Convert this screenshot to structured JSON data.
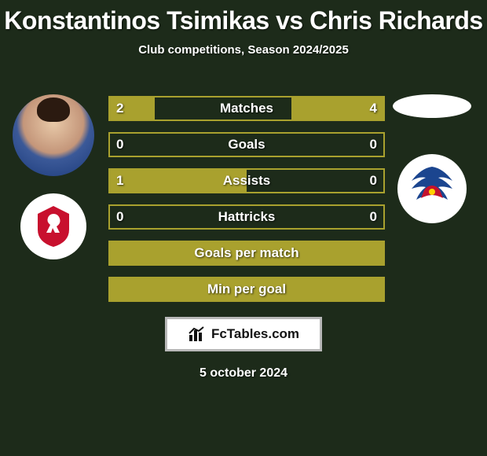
{
  "colors": {
    "background": "#1d2b1a",
    "title": "#ffffff",
    "subtitle": "#ffffff",
    "bar_border": "#a9a12e",
    "bar_fill": "#a9a12e",
    "bar_text": "#ffffff",
    "brand_bg": "#ffffff",
    "brand_border": "#b8b8b8",
    "brand_text": "#111111",
    "date_text": "#ffffff",
    "oval_fill": "#ffffff",
    "badge_bg_left": "#ffffff",
    "liverpool_red": "#c8102e",
    "palace_blue": "#1b458f",
    "palace_red": "#c4122e"
  },
  "title": "Konstantinos Tsimikas vs Chris Richards",
  "subtitle": "Club competitions, Season 2024/2025",
  "date": "5 october 2024",
  "brand": "FcTables.com",
  "left": {
    "player": "Konstantinos Tsimikas",
    "club": "Liverpool"
  },
  "right": {
    "player": "Chris Richards",
    "club": "Crystal Palace"
  },
  "bars": [
    {
      "label": "Matches",
      "left": "2",
      "right": "4",
      "left_pct": 33,
      "right_pct": 67
    },
    {
      "label": "Goals",
      "left": "0",
      "right": "0",
      "left_pct": 0,
      "right_pct": 0
    },
    {
      "label": "Assists",
      "left": "1",
      "right": "0",
      "left_pct": 100,
      "right_pct": 0
    },
    {
      "label": "Hattricks",
      "left": "0",
      "right": "0",
      "left_pct": 0,
      "right_pct": 0
    },
    {
      "label": "Goals per match",
      "left": "",
      "right": "",
      "left_pct": 100,
      "right_pct": 100
    },
    {
      "label": "Min per goal",
      "left": "",
      "right": "",
      "left_pct": 100,
      "right_pct": 100
    }
  ]
}
